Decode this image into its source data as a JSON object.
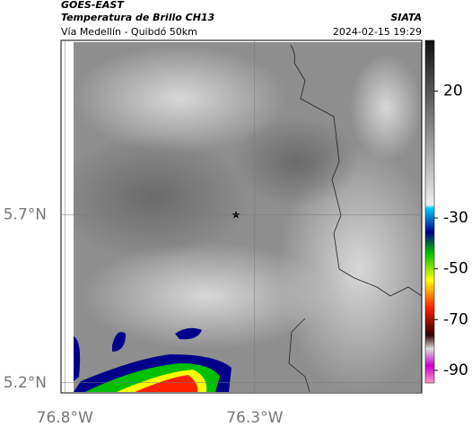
{
  "header": {
    "title": "GOES-EAST",
    "subtitle": "Temperatura de Brillo CH13",
    "source": "SIATA",
    "route": "Vía Medellín - Quibdó 50km",
    "timestamp": "2024-02-15 19:29"
  },
  "map": {
    "latlim": [
      5.17,
      6.22
    ],
    "lonlim": [
      -76.81,
      -75.86
    ],
    "lat_ticks": [
      {
        "value": 5.7,
        "label": "5.7°N"
      },
      {
        "value": 5.2,
        "label": "5.2°N"
      }
    ],
    "lon_ticks": [
      {
        "value": -76.8,
        "label": "76.8°W"
      },
      {
        "value": -76.3,
        "label": "76.3°W"
      }
    ],
    "grid": true
  },
  "colorbar": {
    "lim": [
      -95,
      40
    ],
    "ticks": [
      20,
      -30,
      -50,
      -70,
      -90
    ]
  }
}
